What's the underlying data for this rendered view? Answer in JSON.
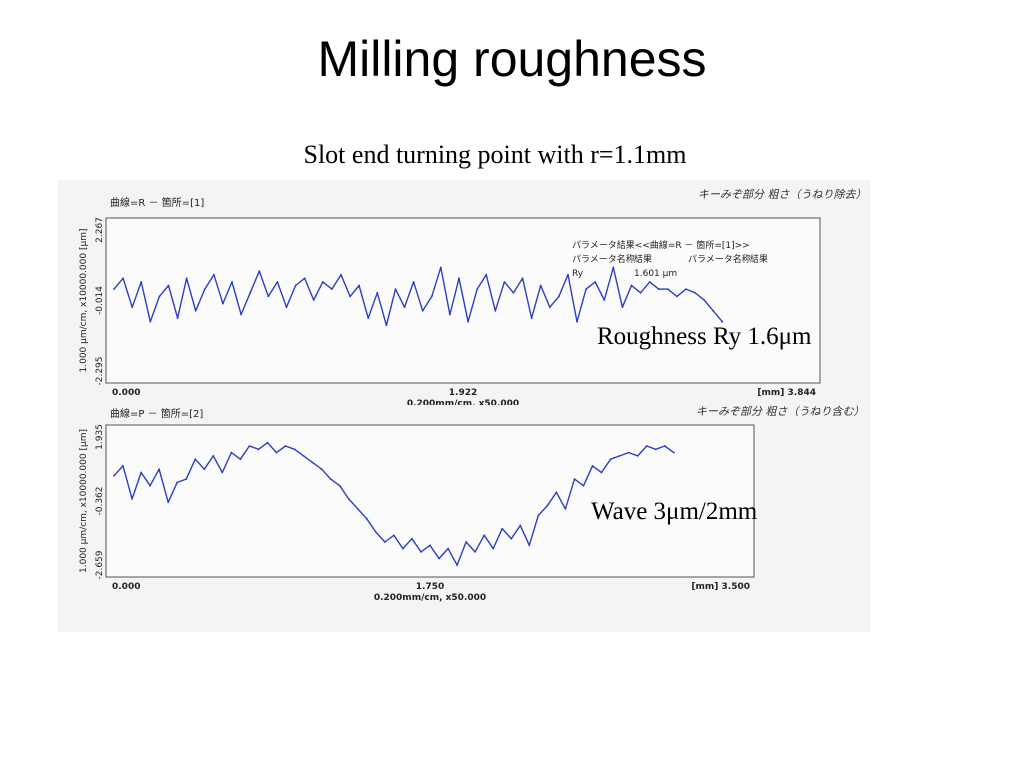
{
  "title": "Milling roughness",
  "subtitle": "Slot end turning point with r=1.1mm",
  "notes": {
    "roughness": "Roughness Ry 1.6μm",
    "wave": "Wave 3μm/2mm"
  },
  "chart_data": [
    {
      "type": "line",
      "header": "曲線=R － 箇所=[1]",
      "handwritten_note": "キーみぞ部分 粗さ（うねり除去）",
      "ylabel": "1.000 μm/cm, x10000.000  [μm]",
      "y_ticks": [
        "2.267",
        "-0.014",
        "-2.295"
      ],
      "x_ticks": [
        "0.000",
        "1.922"
      ],
      "x_end_label": "[mm] 3.844",
      "xlabel": "0.200mm/cm, x50.000",
      "xlim": [
        0,
        3.844
      ],
      "ylim": [
        -2.295,
        2.267
      ],
      "grid": false,
      "param_panel": {
        "title": "パラメータ結果<<曲線=R － 箇所=[1]>>",
        "header": [
          "パラメータ名称",
          "結果",
          "パラメータ名称",
          "結果"
        ],
        "rows": [
          [
            "Ry",
            "1.601 μm",
            "",
            ""
          ]
        ]
      },
      "x": [
        0,
        0.05,
        0.1,
        0.15,
        0.2,
        0.25,
        0.3,
        0.35,
        0.4,
        0.45,
        0.5,
        0.55,
        0.6,
        0.65,
        0.7,
        0.75,
        0.8,
        0.85,
        0.9,
        0.95,
        1,
        1.05,
        1.1,
        1.15,
        1.2,
        1.25,
        1.3,
        1.35,
        1.4,
        1.45,
        1.5,
        1.55,
        1.6,
        1.65,
        1.7,
        1.75,
        1.8,
        1.85,
        1.9,
        1.95,
        2,
        2.05,
        2.1,
        2.15,
        2.2,
        2.25,
        2.3,
        2.35,
        2.4,
        2.45,
        2.5,
        2.55,
        2.6,
        2.65,
        2.7,
        2.75,
        2.8,
        2.85,
        2.9,
        2.95,
        3,
        3.05,
        3.1,
        3.15,
        3.2,
        3.25,
        3.3,
        3.35
      ],
      "values": [
        0.3,
        0.6,
        -0.2,
        0.5,
        -0.6,
        0.1,
        0.4,
        -0.5,
        0.6,
        -0.3,
        0.3,
        0.7,
        -0.1,
        0.5,
        -0.4,
        0.2,
        0.8,
        0.1,
        0.5,
        -0.2,
        0.4,
        0.6,
        0,
        0.5,
        0.3,
        0.7,
        0.1,
        0.4,
        -0.5,
        0.2,
        -0.7,
        0.3,
        -0.2,
        0.5,
        -0.3,
        0.1,
        0.9,
        -0.4,
        0.6,
        -0.6,
        0.3,
        0.7,
        -0.3,
        0.5,
        0.2,
        0.6,
        -0.5,
        0.4,
        -0.2,
        0.1,
        0.7,
        -0.6,
        0.3,
        0.5,
        0,
        0.9,
        -0.2,
        0.4,
        0.2,
        0.5,
        0.3,
        0.3,
        0.1,
        0.3,
        0.2,
        0,
        -0.3,
        -0.6
      ]
    },
    {
      "type": "line",
      "header": "曲線=P － 箇所=[2]",
      "handwritten_note": "キーみぞ部分 粗さ（うねり含む）",
      "ylabel": "1.000 μm/cm, x10000.000  [μm]",
      "y_ticks": [
        "1.935",
        "-0.362",
        "-2.659"
      ],
      "x_ticks": [
        "0.000",
        "1.750"
      ],
      "x_end_label": "[mm] 3.500",
      "xlabel": "0.200mm/cm, x50.000",
      "xlim": [
        0,
        3.5
      ],
      "ylim": [
        -2.659,
        1.935
      ],
      "grid": false,
      "x": [
        0,
        0.05,
        0.1,
        0.15,
        0.2,
        0.25,
        0.3,
        0.35,
        0.4,
        0.45,
        0.5,
        0.55,
        0.6,
        0.65,
        0.7,
        0.75,
        0.8,
        0.85,
        0.9,
        0.95,
        1,
        1.05,
        1.1,
        1.15,
        1.2,
        1.25,
        1.3,
        1.35,
        1.4,
        1.45,
        1.5,
        1.55,
        1.6,
        1.65,
        1.7,
        1.75,
        1.8,
        1.85,
        1.9,
        1.95,
        2,
        2.05,
        2.1,
        2.15,
        2.2,
        2.25,
        2.3,
        2.35,
        2.4,
        2.45,
        2.5,
        2.55,
        2.6,
        2.65,
        2.7,
        2.75,
        2.8,
        2.85,
        2.9,
        2.95,
        3,
        3.05,
        3.1
      ],
      "values": [
        0.4,
        0.7,
        -0.3,
        0.5,
        0.1,
        0.6,
        -0.4,
        0.2,
        0.3,
        0.9,
        0.6,
        1,
        0.5,
        1.1,
        0.9,
        1.3,
        1.2,
        1.4,
        1.1,
        1.3,
        1.2,
        1,
        0.8,
        0.6,
        0.3,
        0.1,
        -0.3,
        -0.6,
        -0.9,
        -1.3,
        -1.6,
        -1.4,
        -1.8,
        -1.5,
        -1.9,
        -1.7,
        -2.1,
        -1.8,
        -2.3,
        -1.6,
        -1.9,
        -1.4,
        -1.8,
        -1.2,
        -1.5,
        -1.1,
        -1.7,
        -0.8,
        -0.5,
        -0.1,
        -0.6,
        0.3,
        0.1,
        0.7,
        0.5,
        0.9,
        1,
        1.1,
        1,
        1.3,
        1.2,
        1.3,
        1.1
      ]
    }
  ]
}
